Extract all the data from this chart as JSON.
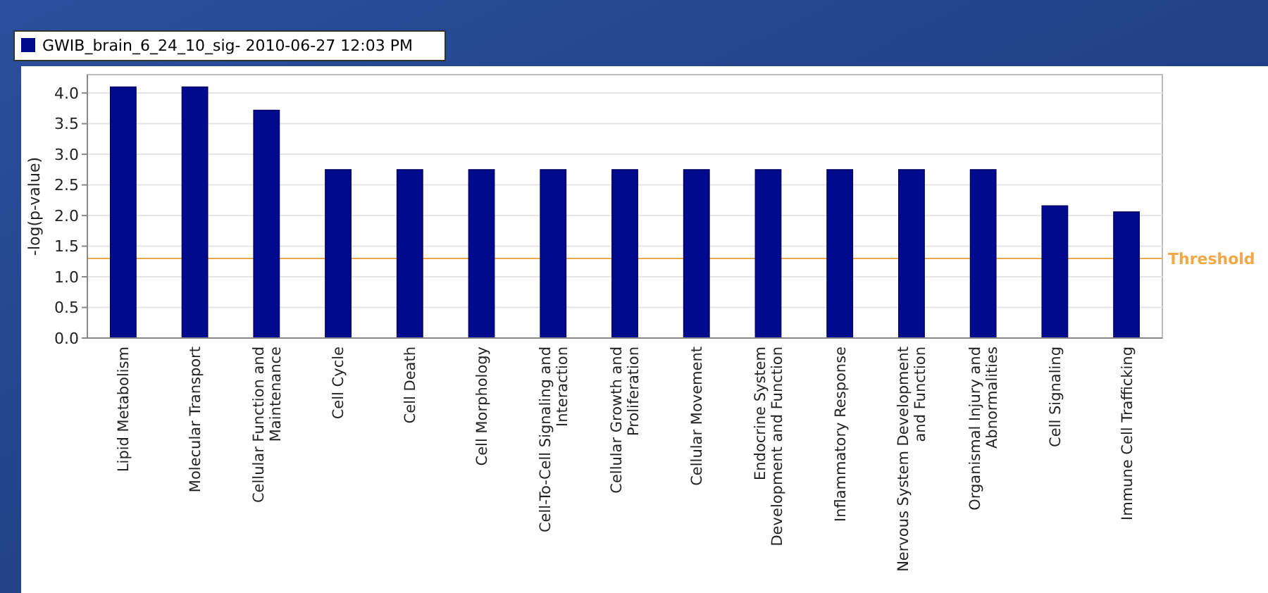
{
  "chart_data": {
    "type": "bar",
    "ylabel": "-log(p-value)",
    "categories": [
      "Lipid Metabolism",
      "Molecular Transport",
      "Cellular Function and Maintenance",
      "Cell Cycle",
      "Cell Death",
      "Cell Morphology",
      "Cell-To-Cell Signaling and Interaction",
      "Cellular Growth and Proliferation",
      "Cellular Movement",
      "Endocrine System Development and Function",
      "Inflammatory Response",
      "Nervous System Development and Function",
      "Organismal Injury and Abnormalities",
      "Cell Signaling",
      "Immune Cell Trafficking"
    ],
    "series": [
      {
        "name": "GWIB_brain_6_24_10_sig- 2010-06-27 12:03 PM",
        "color": "#000a8c",
        "values": [
          4.1,
          4.1,
          3.72,
          2.75,
          2.75,
          2.75,
          2.75,
          2.75,
          2.75,
          2.75,
          2.75,
          2.75,
          2.75,
          2.16,
          2.06
        ]
      }
    ],
    "ylim": [
      0,
      4.3
    ],
    "yticks": [
      {
        "value": 0,
        "label": "0.0"
      },
      {
        "value": 0.5,
        "label": "0.5"
      },
      {
        "value": 1,
        "label": "1.0"
      },
      {
        "value": 1.5,
        "label": "1.5"
      },
      {
        "value": 2,
        "label": "2.0"
      },
      {
        "value": 2.5,
        "label": "2.5"
      },
      {
        "value": 3,
        "label": "3.0"
      },
      {
        "value": 3.5,
        "label": "3.5"
      },
      {
        "value": 4,
        "label": "4.0"
      }
    ],
    "ref_lines": [
      {
        "axis": "y",
        "value": 1.3,
        "label": "Threshold",
        "color": "#f0a848"
      }
    ],
    "grid": "y",
    "legend": "top left"
  }
}
